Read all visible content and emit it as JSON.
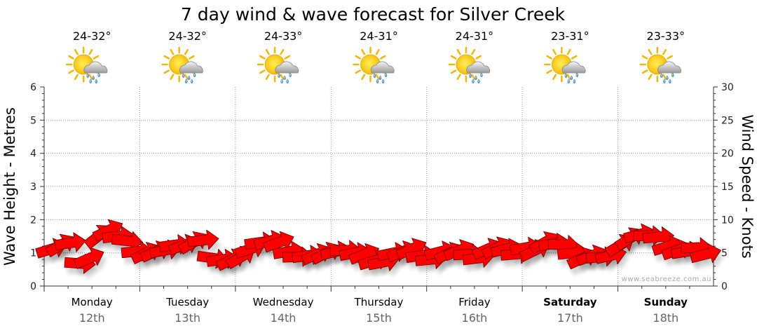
{
  "chart_data": {
    "type": "line",
    "title": "7 day wind & wave forecast for Silver Creek",
    "ylabel_left": "Wave Height - Metres",
    "ylabel_right": "Wind Speed - Knots",
    "ylim_left": [
      0,
      6
    ],
    "ylim_right": [
      0,
      30
    ],
    "yticks_left": [
      "0",
      "1",
      "2",
      "3",
      "4",
      "5",
      "6"
    ],
    "yticks_right": [
      "0",
      "5",
      "10",
      "15",
      "20",
      "25",
      "30"
    ],
    "grid": true,
    "watermark": "www.seabreeze.com.au",
    "days": [
      {
        "day": "Monday",
        "date": "12th",
        "temp": "24-32°",
        "icon": "partly-cloudy-showers-icon",
        "bold": false
      },
      {
        "day": "Tuesday",
        "date": "13th",
        "temp": "24-32°",
        "icon": "partly-cloudy-showers-icon",
        "bold": false
      },
      {
        "day": "Wednesday",
        "date": "14th",
        "temp": "24-33°",
        "icon": "partly-cloudy-showers-icon",
        "bold": false
      },
      {
        "day": "Thursday",
        "date": "15th",
        "temp": "24-31°",
        "icon": "partly-cloudy-showers-icon",
        "bold": false
      },
      {
        "day": "Friday",
        "date": "16th",
        "temp": "24-31°",
        "icon": "partly-cloudy-showers-icon",
        "bold": false
      },
      {
        "day": "Saturday",
        "date": "17th",
        "temp": "23-31°",
        "icon": "partly-cloudy-showers-icon",
        "bold": true
      },
      {
        "day": "Sunday",
        "date": "18th",
        "temp": "23-33°",
        "icon": "partly-cloudy-showers-icon",
        "bold": true
      }
    ],
    "series": [
      {
        "name": "Wind",
        "unit": "knots",
        "color": "#ff0000",
        "values": [
          5.6,
          6.2,
          6.5,
          3.4,
          4.2,
          7.6,
          8.4,
          7.5,
          6.8,
          5.2,
          5.0,
          5.2,
          5.4,
          6.2,
          6.2,
          6.6,
          6.9,
          4.2,
          4.0,
          4.0,
          4.4,
          5.6,
          6.6,
          6.8,
          6.6,
          5.2,
          4.4,
          4.6,
          4.8,
          5.0,
          5.2,
          5.4,
          5.0,
          4.8,
          3.8,
          3.6,
          5.0,
          5.2,
          5.6,
          4.6,
          4.0,
          5.2,
          5.0,
          5.4,
          4.8,
          4.2,
          5.6,
          5.8,
          5.6,
          4.8,
          5.8,
          5.4,
          6.6,
          6.4,
          6.2,
          5.0,
          4.2,
          4.6,
          4.4,
          4.6,
          6.2,
          7.2,
          7.8,
          7.6,
          7.4,
          6.0,
          5.4,
          5.2,
          5.8,
          4.8
        ]
      }
    ]
  }
}
